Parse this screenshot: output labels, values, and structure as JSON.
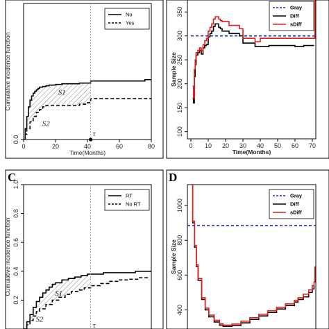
{
  "chart_data": [
    {
      "panel": "",
      "type": "line",
      "title": "",
      "xlabel": "Time(Months)",
      "ylabel": "Cumulative incidence function",
      "xlim": [
        0,
        80
      ],
      "ylim": [
        0,
        1
      ],
      "x_ticks": [
        "0",
        "20",
        "40",
        "60",
        "80"
      ],
      "y_ticks": [],
      "y_ticks_visible": [
        "0.0"
      ],
      "vline_x": 42,
      "tau_label": "τ",
      "region_labels": [
        "S1",
        "S2"
      ],
      "legend": {
        "position": "top-right",
        "entries": [
          "No",
          "Yes"
        ]
      },
      "series": [
        {
          "name": "No",
          "style": "solid",
          "color": "#000000",
          "x": [
            0,
            1,
            2,
            3,
            4,
            5,
            6,
            7,
            8,
            9,
            10,
            12,
            14,
            16,
            18,
            20,
            22,
            24,
            26,
            28,
            30,
            35,
            40,
            42,
            50,
            60,
            70,
            76,
            80
          ],
          "y": [
            0,
            0.08,
            0.17,
            0.24,
            0.29,
            0.32,
            0.34,
            0.355,
            0.365,
            0.375,
            0.385,
            0.39,
            0.395,
            0.4,
            0.4,
            0.405,
            0.405,
            0.41,
            0.41,
            0.41,
            0.41,
            0.415,
            0.415,
            0.43,
            0.43,
            0.43,
            0.43,
            0.44,
            0.44
          ]
        },
        {
          "name": "Yes",
          "style": "dashed",
          "color": "#000000",
          "x": [
            0,
            1,
            2,
            4,
            6,
            8,
            10,
            12,
            14,
            17,
            20,
            25,
            30,
            35,
            40,
            42,
            50,
            60,
            70,
            80
          ],
          "y": [
            0,
            0.04,
            0.08,
            0.13,
            0.17,
            0.2,
            0.22,
            0.24,
            0.25,
            0.25,
            0.25,
            0.25,
            0.25,
            0.26,
            0.27,
            0.3,
            0.3,
            0.3,
            0.3,
            0.3
          ]
        }
      ]
    },
    {
      "panel": "",
      "type": "line",
      "title": "",
      "xlabel": "Time(Months)",
      "ylabel": "Sample Size",
      "xlim": [
        -2,
        72
      ],
      "ylim": [
        85,
        375
      ],
      "x_ticks": [
        "0",
        "10",
        "20",
        "30",
        "40",
        "50",
        "60",
        "70"
      ],
      "y_ticks": [
        "100",
        "150",
        "200",
        "250",
        "300",
        "350"
      ],
      "legend": {
        "position": "top-right",
        "entries": [
          "Gray",
          "Diff",
          "sDiff"
        ]
      },
      "series": [
        {
          "name": "Gray",
          "style": "dashed",
          "color": "#1f2fcc",
          "x": [
            0,
            72
          ],
          "y": [
            300,
            300
          ]
        },
        {
          "name": "Diff",
          "style": "solid",
          "color": "#000000",
          "x": [
            1,
            1.5,
            2,
            2.5,
            3,
            4,
            5,
            6,
            7,
            8,
            9,
            10,
            11,
            12,
            13,
            14,
            15,
            16,
            17,
            18,
            20,
            22,
            25,
            28,
            30,
            35,
            37,
            40,
            45,
            50,
            55,
            60,
            65,
            70,
            71
          ],
          "y": [
            170,
            160,
            215,
            240,
            260,
            265,
            270,
            262,
            275,
            280,
            282,
            298,
            305,
            310,
            320,
            325,
            325,
            318,
            315,
            310,
            310,
            305,
            305,
            300,
            285,
            285,
            278,
            278,
            280,
            280,
            280,
            278,
            280,
            280,
            280
          ]
        },
        {
          "name": "sDiff",
          "style": "solid",
          "color": "#e31a1c",
          "x": [
            1,
            1.5,
            2,
            2.5,
            3,
            4,
            5,
            6,
            7,
            8,
            9,
            10,
            11,
            12,
            13,
            14,
            15,
            16,
            17,
            18,
            20,
            22,
            25,
            28,
            30,
            35,
            37,
            40,
            45,
            50,
            55,
            60,
            65,
            70,
            71,
            71.5
          ],
          "y": [
            195,
            170,
            230,
            250,
            265,
            270,
            275,
            270,
            282,
            290,
            295,
            310,
            318,
            325,
            335,
            340,
            340,
            335,
            332,
            330,
            330,
            322,
            322,
            315,
            295,
            295,
            288,
            295,
            295,
            295,
            295,
            295,
            295,
            295,
            295,
            375
          ]
        }
      ]
    },
    {
      "panel": "C",
      "type": "line",
      "title": "",
      "xlabel": "",
      "ylabel": "Cumulative incidence function",
      "xlim": [
        0,
        80
      ],
      "ylim": [
        0,
        1
      ],
      "x_ticks": [],
      "y_ticks": [
        "0.2",
        "0.4",
        "0.6",
        "0.8",
        "1.0"
      ],
      "vline_x": 42,
      "tau_label": "τ",
      "region_labels": [
        "S1",
        "S2"
      ],
      "legend": {
        "position": "top-right",
        "entries": [
          "RT",
          "No RT"
        ]
      },
      "series": [
        {
          "name": "RT",
          "style": "solid",
          "color": "#000000",
          "x": [
            0,
            2,
            4,
            6,
            8,
            10,
            12,
            14,
            16,
            18,
            20,
            24,
            28,
            32,
            36,
            40,
            42,
            50,
            60,
            70,
            80
          ],
          "y": [
            0,
            0.05,
            0.1,
            0.15,
            0.19,
            0.22,
            0.25,
            0.27,
            0.29,
            0.31,
            0.32,
            0.34,
            0.35,
            0.36,
            0.37,
            0.38,
            0.38,
            0.39,
            0.39,
            0.4,
            0.4
          ]
        },
        {
          "name": "No RT",
          "style": "dashed",
          "color": "#000000",
          "x": [
            0,
            2,
            4,
            6,
            8,
            10,
            14,
            18,
            22,
            26,
            30,
            34,
            38,
            42,
            48,
            54,
            60,
            66,
            72,
            78
          ],
          "y": [
            0,
            0.03,
            0.06,
            0.09,
            0.12,
            0.14,
            0.17,
            0.2,
            0.22,
            0.24,
            0.26,
            0.27,
            0.285,
            0.3,
            0.315,
            0.33,
            0.34,
            0.345,
            0.355,
            0.36
          ]
        }
      ]
    },
    {
      "panel": "D",
      "type": "line",
      "title": "",
      "xlabel": "",
      "ylabel": "Sample Size",
      "xlim": [
        0,
        72
      ],
      "ylim": [
        290,
        1120
      ],
      "x_ticks": [],
      "y_ticks": [
        "400",
        "600",
        "800",
        "1000"
      ],
      "legend": {
        "position": "top-right",
        "entries": [
          "Gray",
          "Diff",
          "sDiff"
        ]
      },
      "series": [
        {
          "name": "Gray",
          "style": "dashed",
          "color": "#1f2fcc",
          "x": [
            0,
            72
          ],
          "y": [
            885,
            885
          ]
        },
        {
          "name": "Diff",
          "style": "solid",
          "color": "#000000",
          "x": [
            2,
            3,
            4,
            5,
            6,
            8,
            10,
            12,
            15,
            18,
            20,
            22,
            25,
            30,
            35,
            40,
            45,
            50,
            55,
            60,
            62,
            65,
            68,
            70,
            71
          ],
          "y": [
            1120,
            900,
            760,
            650,
            570,
            460,
            400,
            360,
            330,
            312,
            305,
            305,
            310,
            325,
            345,
            365,
            385,
            405,
            425,
            445,
            460,
            475,
            500,
            520,
            540
          ]
        },
        {
          "name": "sDiff",
          "style": "solid",
          "color": "#e31a1c",
          "x": [
            2,
            3,
            4,
            5,
            6,
            8,
            10,
            12,
            15,
            18,
            20,
            22,
            25,
            30,
            35,
            40,
            45,
            50,
            55,
            60,
            62,
            65,
            68,
            70,
            71,
            71.5
          ],
          "y": [
            1120,
            910,
            770,
            660,
            580,
            470,
            410,
            370,
            340,
            320,
            312,
            312,
            318,
            335,
            355,
            375,
            395,
            415,
            435,
            455,
            470,
            490,
            515,
            540,
            560,
            650
          ]
        }
      ]
    }
  ]
}
